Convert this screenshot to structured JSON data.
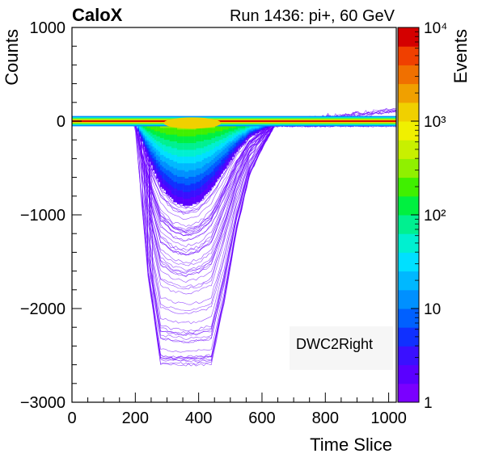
{
  "chart_data": {
    "type": "heatmap",
    "experiment_label": "CaloX",
    "run_label": "Run 1436: pi+, 60 GeV",
    "xlabel": "Time Slice",
    "ylabel": "Counts",
    "zlabel": "Events",
    "xlim": [
      0,
      1024
    ],
    "ylim": [
      -3000,
      1000
    ],
    "zlim": [
      1,
      10000
    ],
    "z_scale": "log",
    "x_ticks": [
      0,
      200,
      400,
      600,
      800,
      1000
    ],
    "x_tick_labels": [
      "0",
      "200",
      "400",
      "600",
      "800",
      "1000"
    ],
    "y_ticks": [
      -3000,
      -2000,
      -1000,
      0,
      1000
    ],
    "y_tick_labels": [
      "−3000",
      "−2000",
      "−1000",
      "0",
      "1000"
    ],
    "z_tick_labels": [
      "1",
      "10",
      "10²",
      "10³",
      "10⁴"
    ],
    "annotation": "DWC2Right",
    "baseline_band": {
      "x": [
        0,
        1024
      ],
      "y_center": 0,
      "y_halfwidth": 25,
      "peak_events": 10000
    },
    "pulse_envelope": {
      "x": [
        200,
        240,
        280,
        320,
        360,
        400,
        440,
        480,
        520,
        560,
        600,
        640
      ],
      "y_min": [
        -100,
        -1700,
        -2660,
        -2660,
        -2660,
        -2660,
        -2660,
        -2000,
        -1200,
        -600,
        -300,
        -50
      ],
      "y_dense": [
        -50,
        -400,
        -700,
        -850,
        -900,
        -850,
        -700,
        -500,
        -300,
        -150,
        -80,
        -20
      ]
    },
    "saturation_level": -2660,
    "colors": {
      "high": "#d40000",
      "mid": "#e6e600",
      "low": "#7a00ff",
      "frame": "#000000"
    }
  }
}
